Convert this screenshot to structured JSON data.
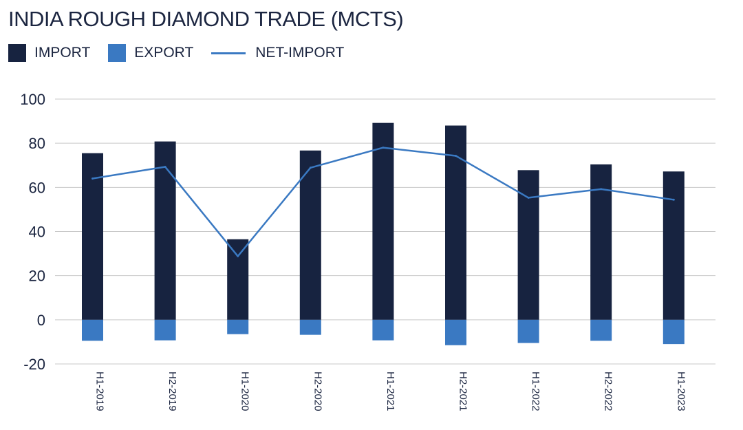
{
  "title": "INDIA ROUGH DIAMOND TRADE (MCTS)",
  "legend": [
    {
      "label": "IMPORT",
      "kind": "bar",
      "color": "#172340"
    },
    {
      "label": "EXPORT",
      "kind": "bar",
      "color": "#3a79c2"
    },
    {
      "label": "NET-IMPORT",
      "kind": "line",
      "color": "#3a79c2"
    }
  ],
  "chart_data": {
    "type": "bar",
    "title": "INDIA ROUGH DIAMOND TRADE (MCTS)",
    "xlabel": "",
    "ylabel": "",
    "ylim": [
      -20,
      100
    ],
    "yticks": [
      100,
      80,
      60,
      40,
      20,
      0,
      -20
    ],
    "grid": true,
    "legend_position": "top-left",
    "categories": [
      "H1-2019",
      "H2-2019",
      "H1-2020",
      "H2-2020",
      "H1-2021",
      "H2-2021",
      "H1-2022",
      "H2-2022",
      "H1-2023"
    ],
    "series": [
      {
        "name": "IMPORT",
        "kind": "bar",
        "color": "#172340",
        "values": [
          75.5,
          80.8,
          36.5,
          76.7,
          89.2,
          88.0,
          67.8,
          70.4,
          67.2
        ]
      },
      {
        "name": "EXPORT",
        "kind": "bar",
        "color": "#3a79c2",
        "values": [
          -9.5,
          -9.3,
          -6.5,
          -6.8,
          -9.3,
          -11.5,
          -10.5,
          -9.5,
          -11.0
        ]
      },
      {
        "name": "NET-IMPORT",
        "kind": "line",
        "color": "#3a79c2",
        "values": [
          64.0,
          69.3,
          28.8,
          68.9,
          78.0,
          74.3,
          55.3,
          59.2,
          54.4
        ]
      }
    ]
  }
}
